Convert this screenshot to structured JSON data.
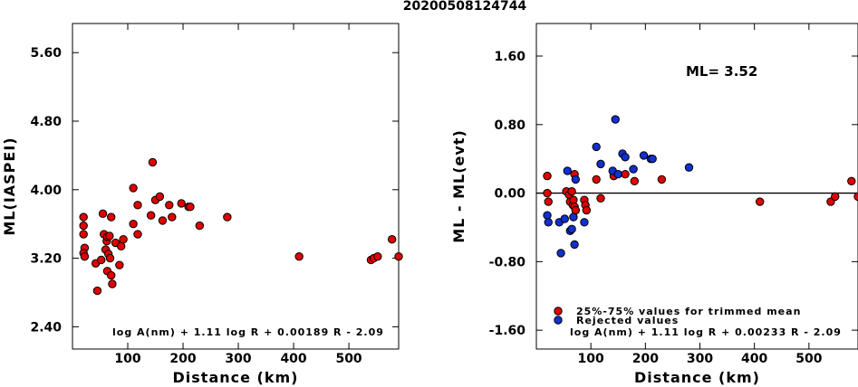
{
  "title": "20200508124744",
  "chart_data": [
    {
      "type": "scatter",
      "ylabel": "ML(IASPEI)",
      "xlabel": "Distance (km)",
      "xlim": [
        0,
        590
      ],
      "ylim": [
        2.14,
        5.94
      ],
      "xticks": [
        "100",
        "200",
        "300",
        "400",
        "500"
      ],
      "xtick_values": [
        100,
        200,
        300,
        400,
        500
      ],
      "yticks": [
        "2.40",
        "3.20",
        "4.00",
        "4.80",
        "5.60"
      ],
      "ytick_values": [
        2.4,
        3.2,
        4.0,
        4.8,
        5.6
      ],
      "annotation": "log A(nm) + 1.11 log R + 0.00189 R - 2.09",
      "series": [
        {
          "color": "#e00000",
          "points": [
            [
              20,
              3.68
            ],
            [
              20,
              3.58
            ],
            [
              20,
              3.48
            ],
            [
              22,
              3.32
            ],
            [
              20,
              3.26
            ],
            [
              22,
              3.22
            ],
            [
              45,
              2.82
            ],
            [
              42,
              3.14
            ],
            [
              52,
              3.18
            ],
            [
              55,
              3.72
            ],
            [
              57,
              3.48
            ],
            [
              60,
              3.3
            ],
            [
              62,
              3.4
            ],
            [
              63,
              3.45
            ],
            [
              63,
              3.05
            ],
            [
              65,
              3.25
            ],
            [
              67,
              3.46
            ],
            [
              68,
              3.2
            ],
            [
              70,
              3.68
            ],
            [
              70,
              3.0
            ],
            [
              72,
              2.9
            ],
            [
              78,
              3.38
            ],
            [
              85,
              3.12
            ],
            [
              88,
              3.34
            ],
            [
              92,
              3.42
            ],
            [
              110,
              3.6
            ],
            [
              110,
              4.02
            ],
            [
              118,
              3.82
            ],
            [
              118,
              3.48
            ],
            [
              142,
              3.7
            ],
            [
              145,
              4.32
            ],
            [
              150,
              3.88
            ],
            [
              158,
              3.92
            ],
            [
              163,
              3.64
            ],
            [
              175,
              3.82
            ],
            [
              180,
              3.68
            ],
            [
              197,
              3.84
            ],
            [
              210,
              3.8
            ],
            [
              213,
              3.8
            ],
            [
              230,
              3.58
            ],
            [
              280,
              3.68
            ],
            [
              410,
              3.22
            ],
            [
              540,
              3.18
            ],
            [
              545,
              3.2
            ],
            [
              552,
              3.22
            ],
            [
              578,
              3.42
            ],
            [
              590,
              3.22
            ]
          ]
        }
      ]
    },
    {
      "type": "scatter",
      "ylabel": "ML - ML(evt)",
      "xlabel": "Distance (km)",
      "xlim": [
        0,
        590
      ],
      "ylim": [
        -1.82,
        1.98
      ],
      "xticks": [
        "100",
        "200",
        "300",
        "400",
        "500"
      ],
      "xtick_values": [
        100,
        200,
        300,
        400,
        500
      ],
      "yticks": [
        "-1.60",
        "-0.80",
        "0.00",
        "0.80",
        "1.60"
      ],
      "ytick_values": [
        -1.6,
        -0.8,
        0.0,
        0.8,
        1.6
      ],
      "zero_line": 0.0,
      "ml_text": "ML= 3.52",
      "legend": [
        {
          "label": "25%-75% values for trimmed mean",
          "color": "#e00000"
        },
        {
          "label": "Rejected values",
          "color": "#1030d0"
        }
      ],
      "annotation": "log A(nm) + 1.11 log R + 0.00233 R - 2.09",
      "series": [
        {
          "name": "25%-75% values for trimmed mean",
          "color": "#e00000",
          "points": [
            [
              20,
              0.2
            ],
            [
              20,
              0.0
            ],
            [
              22,
              -0.1
            ],
            [
              55,
              0.02
            ],
            [
              60,
              -0.02
            ],
            [
              62,
              -0.1
            ],
            [
              65,
              0.02
            ],
            [
              67,
              -0.14
            ],
            [
              68,
              -0.08
            ],
            [
              70,
              -0.16
            ],
            [
              72,
              -0.2
            ],
            [
              70,
              0.22
            ],
            [
              88,
              -0.08
            ],
            [
              90,
              -0.14
            ],
            [
              92,
              -0.2
            ],
            [
              110,
              0.16
            ],
            [
              118,
              -0.06
            ],
            [
              142,
              0.2
            ],
            [
              163,
              0.22
            ],
            [
              180,
              0.14
            ],
            [
              230,
              0.16
            ],
            [
              410,
              -0.1
            ],
            [
              540,
              -0.1
            ],
            [
              548,
              -0.04
            ],
            [
              578,
              0.14
            ],
            [
              590,
              -0.04
            ]
          ]
        },
        {
          "name": "Rejected values",
          "color": "#1030d0",
          "points": [
            [
              20,
              -0.26
            ],
            [
              22,
              -0.34
            ],
            [
              42,
              -0.34
            ],
            [
              45,
              -0.7
            ],
            [
              52,
              -0.3
            ],
            [
              57,
              0.26
            ],
            [
              62,
              -0.44
            ],
            [
              65,
              -0.42
            ],
            [
              68,
              -0.28
            ],
            [
              70,
              -0.6
            ],
            [
              72,
              0.16
            ],
            [
              88,
              -0.34
            ],
            [
              110,
              0.54
            ],
            [
              118,
              0.34
            ],
            [
              140,
              0.26
            ],
            [
              145,
              0.86
            ],
            [
              150,
              0.22
            ],
            [
              158,
              0.46
            ],
            [
              163,
              0.42
            ],
            [
              178,
              0.28
            ],
            [
              197,
              0.44
            ],
            [
              210,
              0.4
            ],
            [
              213,
              0.4
            ],
            [
              280,
              0.3
            ]
          ]
        }
      ]
    }
  ]
}
